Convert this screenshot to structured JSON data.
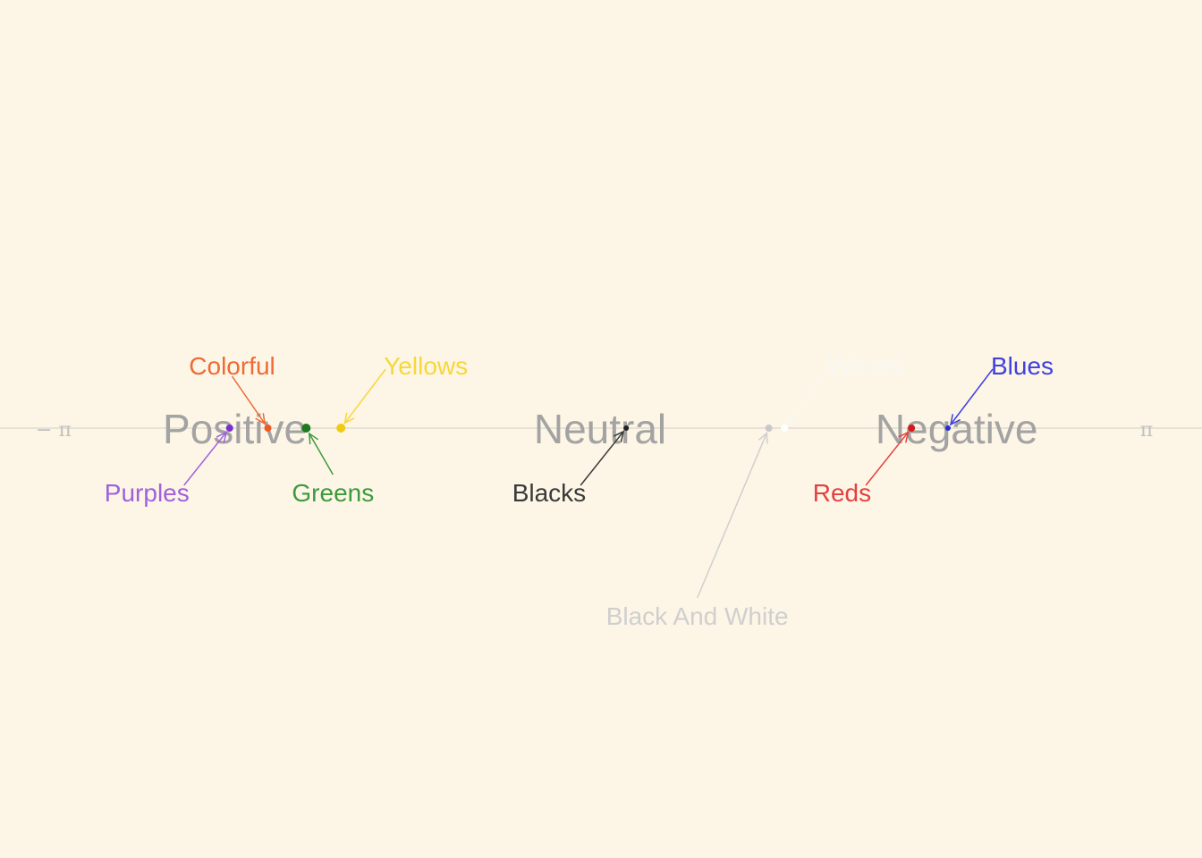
{
  "chart_data": {
    "type": "scatter",
    "xlim": [
      -3.1416,
      3.1416
    ],
    "axis_color": "#e0dccf",
    "tick_labels": [
      {
        "x": -3.1416,
        "text": "− π"
      },
      {
        "x": 3.1416,
        "text": "π"
      }
    ],
    "regions": [
      {
        "x": -2.1,
        "text": "Positive"
      },
      {
        "x": 0.0,
        "text": "Neutral"
      },
      {
        "x": 2.05,
        "text": "Negative"
      }
    ],
    "points": [
      {
        "label": "Purples",
        "x": -2.13,
        "color": "#7b2fd0",
        "label_color": "#a060dd",
        "size": 4,
        "label_side": "below-left"
      },
      {
        "label": "Colorful",
        "x": -1.91,
        "color": "#ef5a24",
        "label_color": "#ef6a34",
        "size": 4,
        "label_side": "above-left"
      },
      {
        "label": "Greens",
        "x": -1.69,
        "color": "#1d7a1d",
        "label_color": "#3d9a3d",
        "size": 5,
        "label_side": "below"
      },
      {
        "label": "Yellows",
        "x": -1.49,
        "color": "#f0cc10",
        "label_color": "#f7d73a",
        "size": 5,
        "label_side": "above-right"
      },
      {
        "label": "Blacks",
        "x": 0.15,
        "color": "#222222",
        "label_color": "#3a3a3a",
        "size": 3,
        "label_side": "below-left"
      },
      {
        "label": "Black And White",
        "x": 0.97,
        "color": "#c8c8c8",
        "label_color": "#cfcfcf",
        "size": 4,
        "label_side": "far-below"
      },
      {
        "label": "Whites",
        "x": 1.06,
        "color": "#ffffff",
        "label_color": "#f7f7f2",
        "size": 4,
        "label_side": "above-right"
      },
      {
        "label": "Reds",
        "x": 1.79,
        "color": "#d81818",
        "label_color": "#e44040",
        "size": 4,
        "label_side": "below-left"
      },
      {
        "label": "Blues",
        "x": 2.0,
        "color": "#2a2ad0",
        "label_color": "#4040e0",
        "size": 3,
        "label_side": "above-right"
      }
    ]
  }
}
